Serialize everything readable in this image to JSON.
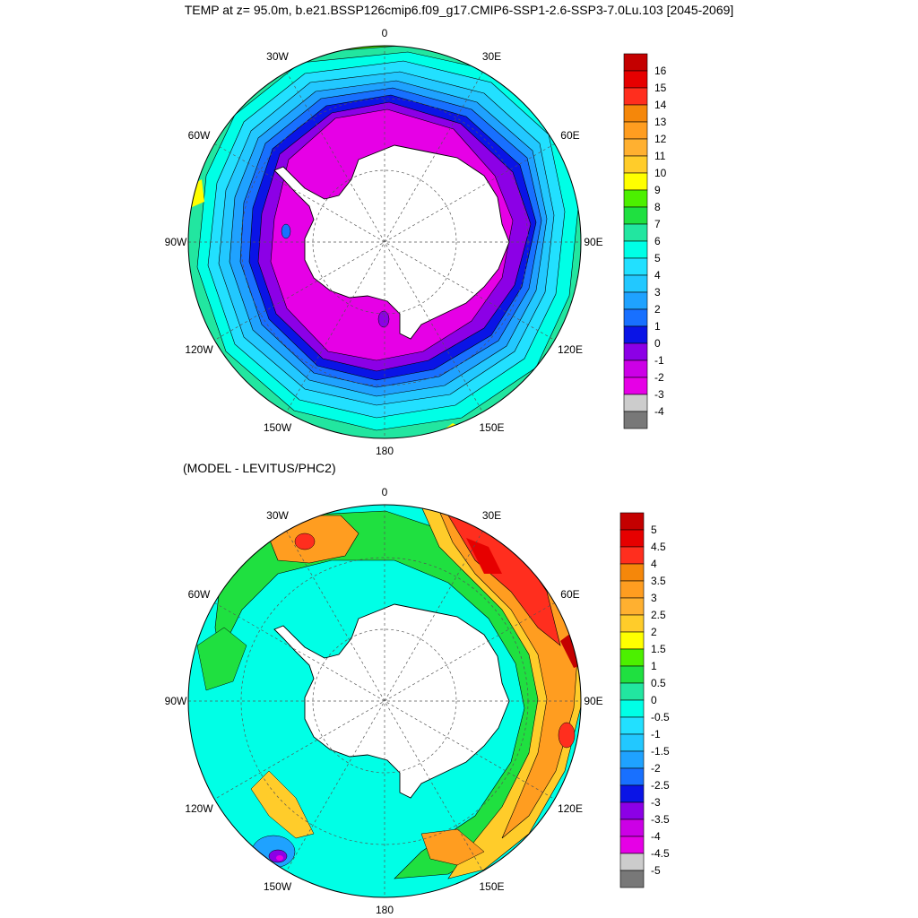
{
  "title": "TEMP at z=  95.0m, b.e21.BSSP126cmip6.f09_g17.CMIP6-SSP1-2.6-SSP3-7.0Lu.103 [2045-2069]",
  "subtitle": "(MODEL - LEVITUS/PHC2)",
  "longitude_labels": [
    "0",
    "30E",
    "60E",
    "90E",
    "120E",
    "150E",
    "180",
    "150W",
    "120W",
    "90W",
    "60W",
    "30W"
  ],
  "colors": {
    "land": "#ffffff",
    "coast": "#000000",
    "grid": "#555555"
  },
  "maps": [
    {
      "name": "temperature",
      "colorbar": {
        "labels": [
          "16",
          "15",
          "14",
          "13",
          "12",
          "11",
          "10",
          "9",
          "8",
          "7",
          "6",
          "5",
          "4",
          "3",
          "2",
          "1",
          "0",
          "-1",
          "-2",
          "-3",
          "-4"
        ],
        "colors": [
          "#c40000",
          "#e60000",
          "#ff2e1e",
          "#f5870a",
          "#ff9d20",
          "#ffb030",
          "#ffcc2a",
          "#ffff00",
          "#4cf000",
          "#1fe040",
          "#22e6a0",
          "#00ffe6",
          "#22e0ff",
          "#22c8ff",
          "#1fa2ff",
          "#1870ff",
          "#0a14e6",
          "#8c00e6",
          "#cc00e6",
          "#e600e6",
          "#cccccc",
          "#787878"
        ]
      },
      "field_levels": {
        "ice_ring": "-2",
        "purple_ring": "-1",
        "blue_ring": "0",
        "mid_blue_ring": "1",
        "light_blue_ring": "2",
        "cyan_ring": "4",
        "teal_ring": "6",
        "outer_green": "8"
      }
    },
    {
      "name": "difference",
      "colorbar": {
        "labels": [
          "5",
          "4.5",
          "4",
          "3.5",
          "3",
          "2.5",
          "2",
          "1.5",
          "1",
          "0.5",
          "0",
          "-0.5",
          "-1",
          "-1.5",
          "-2",
          "-2.5",
          "-3",
          "-3.5",
          "-4",
          "-4.5",
          "-5"
        ],
        "colors": [
          "#c40000",
          "#e60000",
          "#ff2e1e",
          "#f5870a",
          "#ff9d20",
          "#ffb030",
          "#ffcc2a",
          "#ffff00",
          "#4cf000",
          "#1fe040",
          "#22e6a0",
          "#00ffe6",
          "#22e0ff",
          "#22c8ff",
          "#1fa2ff",
          "#1870ff",
          "#0a14e6",
          "#8c00e6",
          "#cc00e6",
          "#e600e6",
          "#cccccc",
          "#787878"
        ]
      }
    }
  ]
}
